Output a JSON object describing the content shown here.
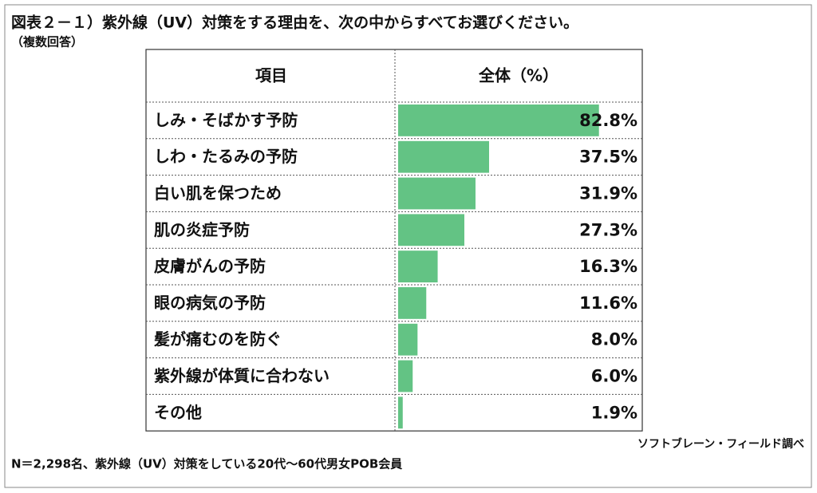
{
  "chart_data": {
    "type": "bar",
    "title": "図表２－１）紫外線（UV）対策をする理由を、次の中からすべてお選びください。",
    "subtitle": "（複数回答）",
    "column_headers": [
      "項目",
      "全体（%）"
    ],
    "categories": [
      "しみ・そばかす予防",
      "しわ・たるみの予防",
      "白い肌を保つため",
      "肌の炎症予防",
      "皮膚がんの予防",
      "眼の病気の予防",
      "髪が痛むのを防ぐ",
      "紫外線が体質に合わない",
      "その他"
    ],
    "values": [
      82.8,
      37.5,
      31.9,
      27.3,
      16.3,
      11.6,
      8.0,
      6.0,
      1.9
    ],
    "value_labels": [
      "82.8%",
      "37.5%",
      "31.9%",
      "27.3%",
      "16.3%",
      "11.6%",
      "8.0%",
      "6.0%",
      "1.9%"
    ],
    "color": "#63c384",
    "source": "ソフトブレーン・フィールド調べ",
    "note": "N＝2,298名、紫外線（UV）対策をしている20代～60代男女POB会員"
  }
}
